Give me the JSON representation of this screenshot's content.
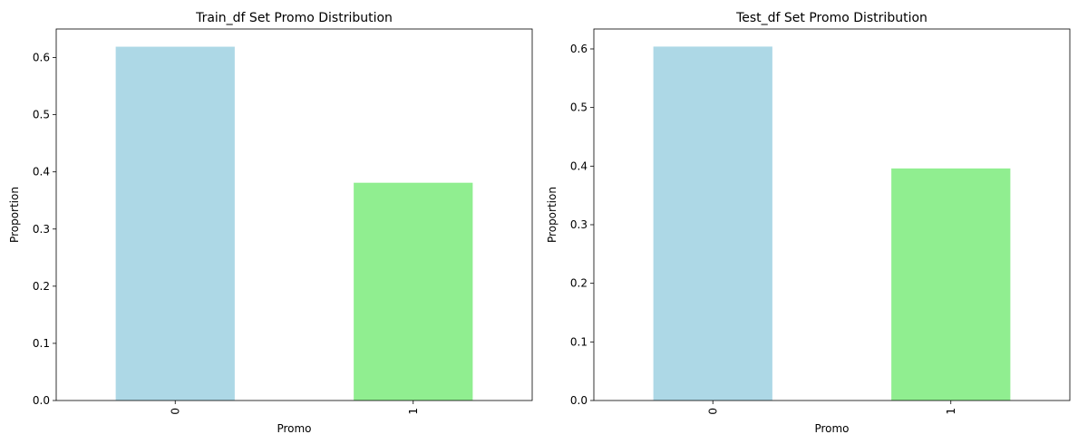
{
  "chart_data": [
    {
      "type": "bar",
      "title": "Train_df Set Promo Distribution",
      "xlabel": "Promo",
      "ylabel": "Proportion",
      "categories": [
        "0",
        "1"
      ],
      "values": [
        0.619,
        0.381
      ],
      "colors": [
        "#add8e6",
        "#90ee90"
      ],
      "ylim": [
        0,
        0.65
      ],
      "yticks": [
        "0.0",
        "0.1",
        "0.2",
        "0.3",
        "0.4",
        "0.5",
        "0.6"
      ],
      "grid": false,
      "legend": "none"
    },
    {
      "type": "bar",
      "title": "Test_df Set Promo Distribution",
      "xlabel": "Promo",
      "ylabel": "Proportion",
      "categories": [
        "0",
        "1"
      ],
      "values": [
        0.604,
        0.396
      ],
      "colors": [
        "#add8e6",
        "#90ee90"
      ],
      "ylim": [
        0,
        0.634
      ],
      "yticks": [
        "0.0",
        "0.1",
        "0.2",
        "0.3",
        "0.4",
        "0.5",
        "0.6"
      ],
      "grid": false,
      "legend": "none"
    }
  ]
}
